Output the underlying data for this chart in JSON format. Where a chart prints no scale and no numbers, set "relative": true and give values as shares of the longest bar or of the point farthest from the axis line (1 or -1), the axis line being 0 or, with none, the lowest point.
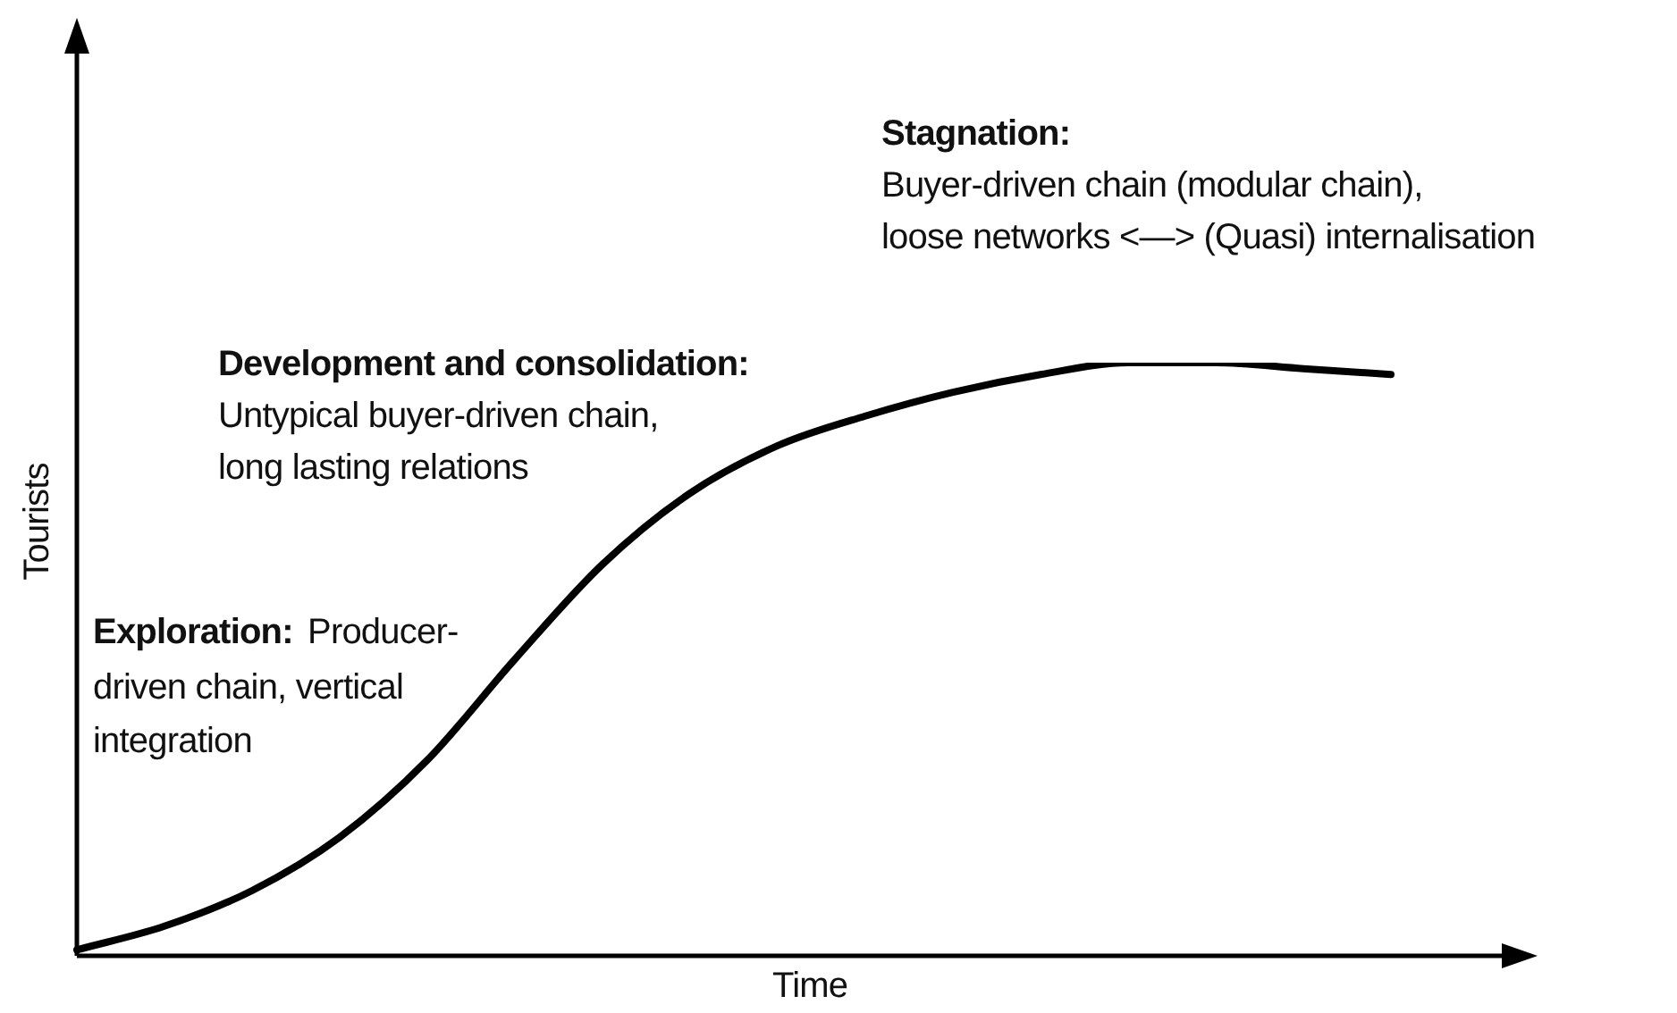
{
  "chart_data": {
    "type": "line",
    "relative": true,
    "xlabel": "Time",
    "ylabel": "Tourists",
    "categories": [
      null,
      null,
      null,
      null,
      null,
      null,
      null,
      null,
      null,
      null,
      null,
      null,
      null,
      null,
      null,
      null,
      null
    ],
    "series": [
      {
        "color": "#000000",
        "values": [
          0.01,
          0.05,
          0.11,
          0.2,
          0.33,
          0.5,
          0.66,
          0.78,
          0.86,
          0.91,
          0.95,
          0.98,
          1.0,
          1.0,
          0.99,
          0.98,
          null
        ]
      }
    ],
    "marker": "none",
    "line_style": "solid",
    "grid": false,
    "legend": false,
    "annotations": [
      "Stagnation:",
      "Buyer-driven chain (modular chain),",
      "loose networks <—> (Quasi) internalisation",
      "Development and consolidation:",
      "Untypical buyer-driven chain,",
      "long lasting relations",
      "Exploration:",
      "Producer-",
      "driven chain, vertical",
      "integration"
    ]
  }
}
